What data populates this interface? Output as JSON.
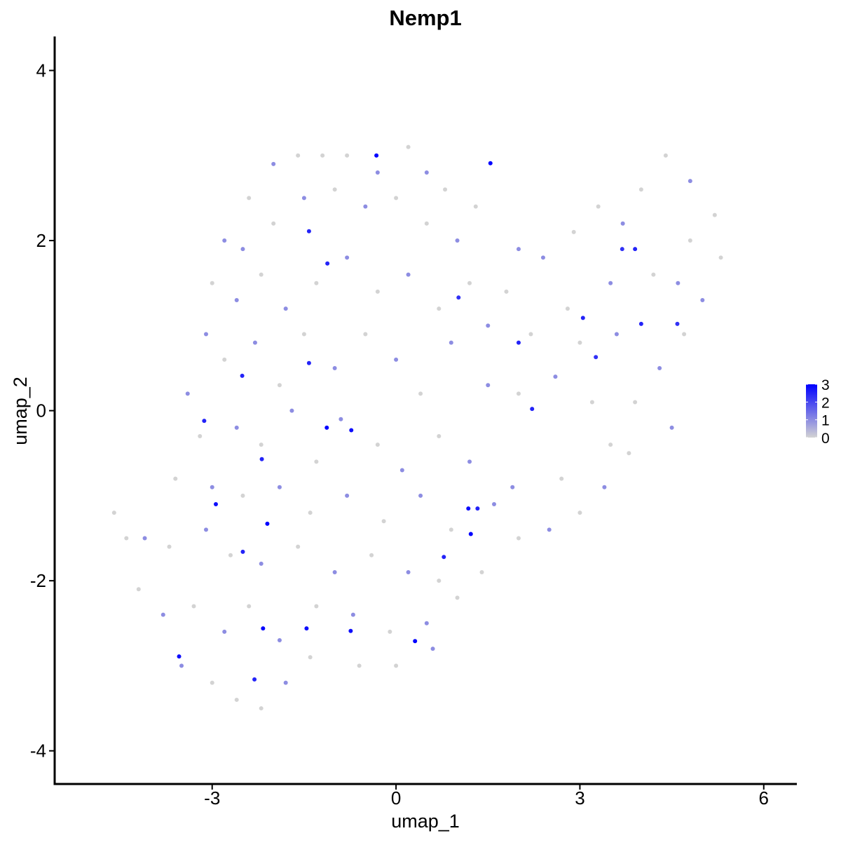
{
  "chart_data": {
    "type": "scatter",
    "title": "Nemp1",
    "x_label": "umap_1",
    "y_label": "umap_2",
    "xlim": [
      -5.57,
      6.54
    ],
    "ylim": [
      -4.39,
      4.4
    ],
    "xticks": [
      -3,
      0,
      3,
      6
    ],
    "yticks": [
      -4,
      -2,
      0,
      2,
      4
    ],
    "color_scale": {
      "low": "#d3d3d3",
      "high": "#0000ff",
      "limits": [
        0,
        3
      ],
      "ticks": [
        0,
        1,
        2,
        3
      ]
    },
    "x": [
      -2.0,
      -1.6,
      -1.2,
      -0.8,
      -0.3,
      0.2,
      0.5,
      0.8,
      -2.4,
      -2.8,
      -2.5,
      -2.0,
      -1.5,
      -1.0,
      -0.5,
      0.0,
      0.5,
      1.0,
      -3.0,
      -2.6,
      -2.2,
      -1.8,
      -1.3,
      -0.8,
      -0.3,
      0.2,
      0.7,
      1.2,
      1.5,
      -3.1,
      -2.8,
      -2.3,
      -1.9,
      -1.5,
      -1.0,
      -0.5,
      0.0,
      0.4,
      0.9,
      -3.4,
      -3.2,
      -2.6,
      -2.2,
      -1.7,
      -1.3,
      -0.9,
      -0.3,
      0.1,
      0.7,
      1.2,
      -3.6,
      -3.0,
      -2.5,
      -1.9,
      -1.4,
      -0.8,
      -0.2,
      0.4,
      0.9,
      1.6,
      -4.1,
      -3.7,
      -3.1,
      -2.7,
      -2.2,
      -1.6,
      -1.0,
      -0.4,
      0.2,
      0.7,
      -4.6,
      -4.4,
      -4.2,
      -3.8,
      -3.3,
      -2.8,
      -2.4,
      -1.9,
      -1.3,
      -0.7,
      -0.1,
      0.5,
      1.0,
      -3.5,
      -3.0,
      -2.6,
      -2.2,
      -1.8,
      -1.4,
      -0.6,
      0.0,
      0.6,
      1.4,
      2.0,
      2.5,
      3.0,
      3.4,
      3.5,
      3.2,
      2.6,
      2.2,
      1.8,
      2.4,
      2.9,
      3.3,
      3.7,
      4.0,
      4.4,
      4.8,
      5.2,
      5.3,
      5.0,
      4.7,
      4.3,
      3.9,
      4.5,
      3.8,
      4.2,
      3.5,
      2.8,
      2.0,
      1.5,
      2.7,
      1.9,
      3.0,
      4.8,
      4.6,
      3.6,
      1.3,
      2.0,
      -2.51,
      -3.13,
      -1.13,
      -0.73,
      -2.94,
      -2.1,
      -2.19,
      -2.5,
      -2.17,
      -1.46,
      -0.74,
      0.31,
      -3.54,
      -2.31,
      1.18,
      1.33,
      1.22,
      0.78,
      -0.32,
      1.54,
      -1.42,
      -1.12,
      2.22,
      2.0,
      3.9,
      3.69,
      4.0,
      4.59,
      3.05,
      3.26,
      -1.42,
      1.02
    ],
    "y": [
      2.9,
      3.0,
      3.0,
      3.0,
      2.8,
      3.1,
      2.8,
      2.6,
      2.5,
      2.0,
      1.9,
      2.2,
      2.5,
      2.6,
      2.4,
      2.5,
      2.2,
      2.0,
      1.5,
      1.3,
      1.6,
      1.2,
      1.5,
      1.8,
      1.4,
      1.6,
      1.2,
      1.5,
      1.0,
      0.9,
      0.6,
      0.8,
      0.3,
      0.9,
      0.5,
      0.9,
      0.6,
      0.2,
      0.8,
      0.2,
      -0.3,
      -0.2,
      -0.4,
      0.0,
      -0.6,
      -0.1,
      -0.4,
      -0.7,
      -0.3,
      -0.6,
      -0.8,
      -0.9,
      -1.0,
      -0.9,
      -1.2,
      -1.0,
      -1.3,
      -1.0,
      -1.4,
      -1.1,
      -1.5,
      -1.6,
      -1.4,
      -1.7,
      -1.8,
      -1.6,
      -1.9,
      -1.7,
      -1.9,
      -2.0,
      -1.2,
      -1.5,
      -2.1,
      -2.4,
      -2.3,
      -2.6,
      -2.3,
      -2.7,
      -2.3,
      -2.4,
      -2.6,
      -2.5,
      -2.2,
      -3.0,
      -3.2,
      -3.4,
      -3.5,
      -3.2,
      -2.9,
      -3.0,
      -3.0,
      -2.8,
      -1.9,
      -1.5,
      -1.4,
      -1.2,
      -0.9,
      -0.4,
      0.1,
      0.4,
      0.9,
      1.4,
      1.8,
      2.1,
      2.4,
      2.2,
      2.6,
      3.0,
      2.7,
      2.3,
      1.8,
      1.3,
      0.9,
      0.5,
      0.1,
      -0.2,
      -0.5,
      1.6,
      1.5,
      1.2,
      0.2,
      0.3,
      -0.8,
      -0.9,
      0.8,
      2.0,
      1.5,
      0.9,
      2.4,
      1.9,
      0.41,
      -0.12,
      -0.2,
      -0.23,
      -1.1,
      -1.33,
      -0.57,
      -1.66,
      -2.56,
      -2.56,
      -2.59,
      -2.71,
      -2.89,
      -3.16,
      -1.15,
      -1.15,
      -1.45,
      -1.72,
      3.0,
      2.91,
      2.11,
      1.73,
      0.02,
      0.8,
      1.9,
      1.9,
      1.02,
      1.02,
      1.09,
      0.63,
      0.56,
      1.33
    ],
    "values": [
      1,
      0,
      0,
      0,
      1,
      0,
      1,
      0,
      0,
      1,
      1,
      0,
      1,
      0,
      1,
      0,
      0,
      1,
      0,
      1,
      0,
      1,
      0,
      1,
      0,
      1,
      0,
      0,
      1,
      1,
      0,
      1,
      0,
      0,
      1,
      0,
      1,
      0,
      1,
      1,
      0,
      1,
      0,
      1,
      0,
      1,
      0,
      1,
      0,
      1,
      0,
      1,
      0,
      1,
      0,
      1,
      0,
      1,
      0,
      1,
      1,
      0,
      1,
      0,
      1,
      0,
      1,
      0,
      1,
      0,
      0,
      0,
      0,
      1,
      0,
      1,
      0,
      1,
      0,
      1,
      0,
      1,
      0,
      1,
      0,
      0,
      0,
      1,
      0,
      0,
      0,
      1,
      0,
      0,
      1,
      0,
      1,
      0,
      0,
      1,
      0,
      0,
      1,
      0,
      0,
      1,
      0,
      0,
      1,
      0,
      0,
      1,
      0,
      1,
      0,
      1,
      0,
      0,
      1,
      0,
      0,
      1,
      0,
      1,
      0,
      0,
      1,
      1,
      0,
      1,
      2.5,
      2.5,
      3,
      2.8,
      2.8,
      3,
      2.5,
      2.5,
      3,
      2.8,
      2.8,
      3,
      2.8,
      2.5,
      2.8,
      2.5,
      3,
      2.5,
      3,
      3,
      2.5,
      2.5,
      2.5,
      2.5,
      2.5,
      2.3,
      2.5,
      2.3,
      2.5,
      2.3,
      2.5,
      2.3
    ]
  }
}
